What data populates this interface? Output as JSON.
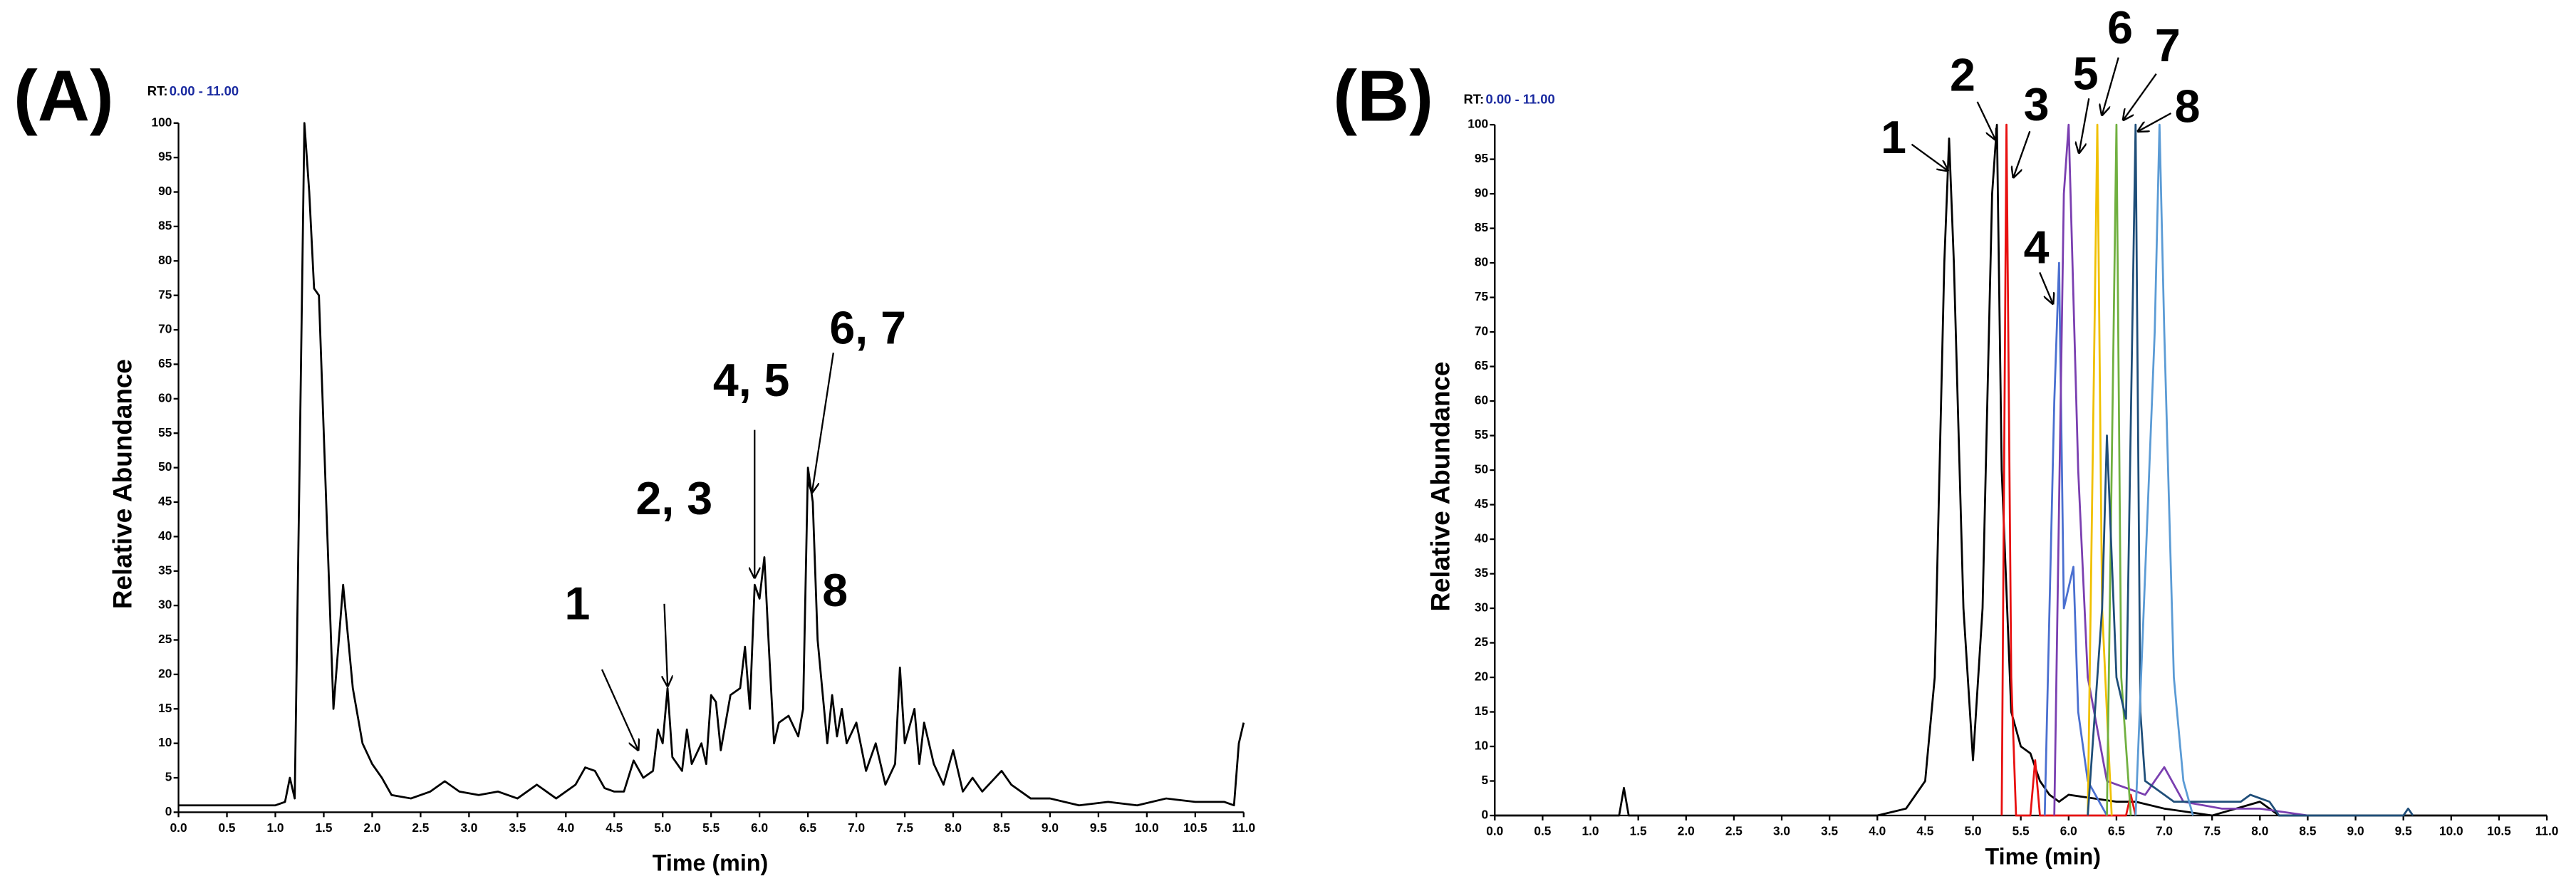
{
  "chart_data": [
    {
      "type": "line",
      "panel_label": "(A)",
      "rt_label": "RT:",
      "rt_range": "0.00 - 11.00",
      "x_label": "Time (min)",
      "y_label": "Relative Abundance",
      "color": "#000000",
      "xlim": [
        0,
        11
      ],
      "ylim": [
        0,
        100
      ],
      "xticks": [
        {
          "value": 0,
          "label": "0.0"
        },
        {
          "value": 0.5,
          "label": "0.5"
        },
        {
          "value": 1,
          "label": "1.0"
        },
        {
          "value": 1.5,
          "label": "1.5"
        },
        {
          "value": 2,
          "label": "2.0"
        },
        {
          "value": 2.5,
          "label": "2.5"
        },
        {
          "value": 3,
          "label": "3.0"
        },
        {
          "value": 3.5,
          "label": "3.5"
        },
        {
          "value": 4,
          "label": "4.0"
        },
        {
          "value": 4.5,
          "label": "4.5"
        },
        {
          "value": 5,
          "label": "5.0"
        },
        {
          "value": 5.5,
          "label": "5.5"
        },
        {
          "value": 6,
          "label": "6.0"
        },
        {
          "value": 6.5,
          "label": "6.5"
        },
        {
          "value": 7,
          "label": "7.0"
        },
        {
          "value": 7.5,
          "label": "7.5"
        },
        {
          "value": 8,
          "label": "8.0"
        },
        {
          "value": 8.5,
          "label": "8.5"
        },
        {
          "value": 9,
          "label": "9.0"
        },
        {
          "value": 9.5,
          "label": "9.5"
        },
        {
          "value": 10,
          "label": "10.0"
        },
        {
          "value": 10.5,
          "label": "10.5"
        },
        {
          "value": 11,
          "label": "11.0"
        }
      ],
      "yticks": [
        0,
        5,
        10,
        15,
        20,
        25,
        30,
        35,
        40,
        45,
        50,
        55,
        60,
        65,
        70,
        75,
        80,
        85,
        90,
        95,
        100
      ],
      "x": [
        0,
        0.5,
        1.0,
        1.1,
        1.15,
        1.2,
        1.25,
        1.3,
        1.35,
        1.4,
        1.45,
        1.5,
        1.6,
        1.7,
        1.8,
        1.9,
        2.0,
        2.1,
        2.2,
        2.4,
        2.6,
        2.75,
        2.9,
        3.1,
        3.3,
        3.5,
        3.7,
        3.9,
        4.1,
        4.2,
        4.3,
        4.4,
        4.5,
        4.6,
        4.7,
        4.8,
        4.9,
        4.95,
        5.0,
        5.05,
        5.1,
        5.2,
        5.25,
        5.3,
        5.4,
        5.45,
        5.5,
        5.55,
        5.6,
        5.7,
        5.8,
        5.85,
        5.9,
        5.95,
        6.0,
        6.05,
        6.1,
        6.15,
        6.2,
        6.3,
        6.4,
        6.45,
        6.5,
        6.55,
        6.6,
        6.7,
        6.75,
        6.8,
        6.85,
        6.9,
        7.0,
        7.1,
        7.2,
        7.3,
        7.4,
        7.45,
        7.5,
        7.6,
        7.65,
        7.7,
        7.8,
        7.9,
        8.0,
        8.1,
        8.2,
        8.3,
        8.5,
        8.6,
        8.8,
        9.0,
        9.3,
        9.6,
        9.9,
        10.2,
        10.5,
        10.8,
        10.9,
        10.95,
        11.0
      ],
      "values": [
        1,
        1,
        1,
        1.5,
        5,
        2,
        50,
        100,
        90,
        76,
        75,
        55,
        15,
        33,
        18,
        10,
        7,
        5,
        2.5,
        2,
        3,
        4.5,
        3,
        2.5,
        3,
        2,
        4,
        2,
        4,
        6.5,
        6,
        3.5,
        3,
        3,
        7.5,
        5,
        6,
        12,
        10,
        18,
        8,
        6,
        12,
        7,
        10,
        7,
        17,
        16,
        9,
        17,
        18,
        24,
        15,
        33,
        31,
        37,
        23,
        10,
        13,
        14,
        11,
        15,
        50,
        45,
        25,
        10,
        17,
        11,
        15,
        10,
        13,
        6,
        10,
        4,
        7,
        21,
        10,
        15,
        7,
        13,
        7,
        4,
        9,
        3,
        5,
        3,
        6,
        4,
        2,
        2,
        1,
        1.5,
        1,
        2,
        1.5,
        1.5,
        1,
        10,
        13
      ],
      "annotations": [
        "1",
        "2, 3",
        "4, 5",
        "6, 7",
        "8"
      ]
    },
    {
      "type": "multiline",
      "panel_label": "(B)",
      "rt_label": "RT:",
      "rt_range": "0.00 - 11.00",
      "x_label": "Time (min)",
      "y_label": "Relative Abundance",
      "xlim": [
        0,
        11
      ],
      "ylim": [
        0,
        100
      ],
      "xticks": [
        {
          "value": 0,
          "label": "0.0"
        },
        {
          "value": 0.5,
          "label": "0.5"
        },
        {
          "value": 1,
          "label": "1.0"
        },
        {
          "value": 1.5,
          "label": "1.5"
        },
        {
          "value": 2,
          "label": "2.0"
        },
        {
          "value": 2.5,
          "label": "2.5"
        },
        {
          "value": 3,
          "label": "3.0"
        },
        {
          "value": 3.5,
          "label": "3.5"
        },
        {
          "value": 4,
          "label": "4.0"
        },
        {
          "value": 4.5,
          "label": "4.5"
        },
        {
          "value": 5,
          "label": "5.0"
        },
        {
          "value": 5.5,
          "label": "5.5"
        },
        {
          "value": 6,
          "label": "6.0"
        },
        {
          "value": 6.5,
          "label": "6.5"
        },
        {
          "value": 7,
          "label": "7.0"
        },
        {
          "value": 7.5,
          "label": "7.5"
        },
        {
          "value": 8,
          "label": "8.0"
        },
        {
          "value": 8.5,
          "label": "8.5"
        },
        {
          "value": 9,
          "label": "9.0"
        },
        {
          "value": 9.5,
          "label": "9.5"
        },
        {
          "value": 10,
          "label": "10.0"
        },
        {
          "value": 10.5,
          "label": "10.5"
        },
        {
          "value": 11,
          "label": "11.0"
        }
      ],
      "yticks": [
        0,
        5,
        10,
        15,
        20,
        25,
        30,
        35,
        40,
        45,
        50,
        55,
        60,
        65,
        70,
        75,
        80,
        85,
        90,
        95,
        100
      ],
      "series": [
        {
          "color": "#000000",
          "x": [
            0,
            1.3,
            1.35,
            1.4,
            3.0,
            4.0,
            4.3,
            4.5,
            4.6,
            4.7,
            4.75,
            4.8,
            4.9,
            5.0,
            5.1,
            5.2,
            5.25,
            5.3,
            5.4,
            5.5,
            5.6,
            5.7,
            5.8,
            5.9,
            6.0,
            6.5,
            6.7,
            7.0,
            7.5,
            8.0,
            8.2,
            11
          ],
          "values": [
            0,
            0,
            4,
            0,
            0,
            0,
            1,
            5,
            20,
            80,
            98,
            80,
            30,
            8,
            30,
            90,
            100,
            50,
            15,
            10,
            9,
            5,
            3,
            2,
            3,
            2,
            2,
            1,
            0,
            2,
            0,
            0
          ]
        },
        {
          "color": "#e81010",
          "x": [
            5.3,
            5.35,
            5.4,
            5.45,
            5.6,
            5.65,
            5.7,
            6.6,
            6.65,
            6.7
          ],
          "values": [
            0,
            100,
            20,
            0,
            0,
            8,
            0,
            0,
            3,
            0
          ]
        },
        {
          "color": "#4a6fd0",
          "x": [
            5.75,
            5.85,
            5.9,
            5.95,
            6.05,
            6.1,
            6.2,
            6.4
          ],
          "values": [
            0,
            60,
            80,
            30,
            36,
            15,
            5,
            0
          ]
        },
        {
          "color": "#7a3fb0",
          "x": [
            5.85,
            5.95,
            6.0,
            6.1,
            6.2,
            6.4,
            6.8,
            7.0,
            7.2,
            7.6,
            8.0,
            8.5
          ],
          "values": [
            0,
            90,
            100,
            50,
            20,
            5,
            3,
            7,
            2,
            1,
            1,
            0
          ]
        },
        {
          "color": "#f0c000",
          "x": [
            6.2,
            6.3,
            6.35,
            6.45
          ],
          "values": [
            0,
            100,
            30,
            0
          ]
        },
        {
          "color": "#70b040",
          "x": [
            6.4,
            6.5,
            6.55,
            6.65
          ],
          "values": [
            0,
            100,
            20,
            0
          ]
        },
        {
          "color": "#1f4e79",
          "x": [
            6.2,
            6.35,
            6.4,
            6.5,
            6.6,
            6.7,
            6.75,
            6.8,
            7.0,
            7.1,
            7.8,
            7.9,
            8.1,
            8.2,
            9.5,
            9.55,
            9.6
          ],
          "values": [
            0,
            30,
            55,
            20,
            14,
            100,
            15,
            5,
            3,
            2,
            2,
            3,
            2,
            0,
            0,
            1,
            0
          ]
        },
        {
          "color": "#5b9bd5",
          "x": [
            6.7,
            6.9,
            6.95,
            7.0,
            7.1,
            7.2,
            7.3
          ],
          "values": [
            0,
            70,
            100,
            70,
            20,
            5,
            0
          ]
        }
      ],
      "annotations": [
        "1",
        "2",
        "3",
        "4",
        "5",
        "6",
        "7",
        "8"
      ]
    }
  ]
}
